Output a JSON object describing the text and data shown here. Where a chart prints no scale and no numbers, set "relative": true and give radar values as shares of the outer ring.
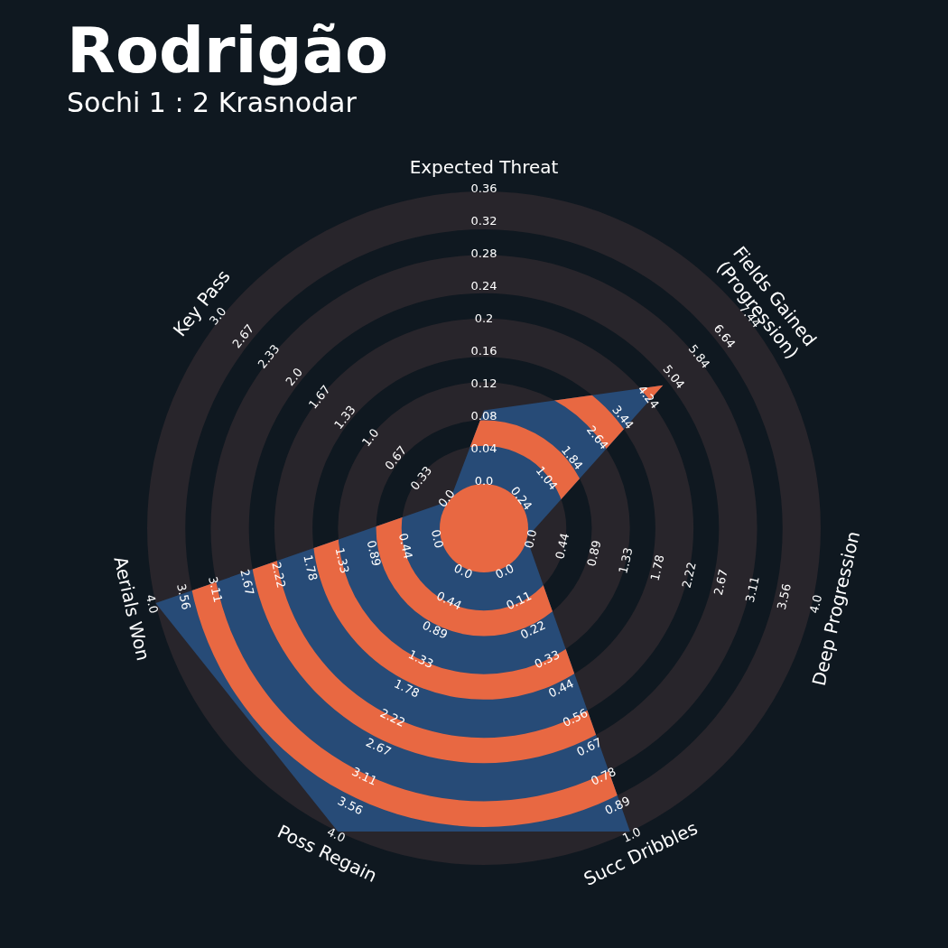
{
  "chart_data": {
    "type": "radar",
    "title": "Rodrigão",
    "subtitle": "Sochi 1 : 2 Krasnodar",
    "relative": true,
    "legend": false,
    "marker": "none",
    "categories": [
      "Expected Threat",
      "Fields Gained\n(Progression)",
      "Deep Progression",
      "Succ Dribbles",
      "Poss Regain",
      "Aerials Won",
      "Key Pass"
    ],
    "series": [
      {
        "color": "#274b77",
        "values": [
          0.35,
          0.68,
          0.13,
          1,
          1,
          1,
          0.13
        ]
      }
    ],
    "annotations": [
      "0.0",
      "0.04",
      "0.08",
      "0.12",
      "0.16",
      "0.2",
      "0.24",
      "0.28",
      "0.32",
      "0.36",
      "0.24",
      "1.04",
      "1.84",
      "2.64",
      "3.44",
      "4.24",
      "5.04",
      "5.84",
      "6.64",
      "7.44",
      "0.0",
      "0.44",
      "0.89",
      "1.33",
      "1.78",
      "2.22",
      "2.67",
      "3.11",
      "3.56",
      "4.0",
      "0.0",
      "0.11",
      "0.22",
      "0.33",
      "0.44",
      "0.56",
      "0.67",
      "0.78",
      "0.89",
      "1.0",
      "0.0",
      "0.44",
      "0.89",
      "1.33",
      "1.78",
      "2.22",
      "2.67",
      "3.11",
      "3.56",
      "4.0",
      "0.0",
      "0.44",
      "0.89",
      "1.33",
      "1.78",
      "2.22",
      "2.67",
      "3.11",
      "3.56",
      "4.0",
      "0.0",
      "0.33",
      "0.67",
      "1.0",
      "1.33",
      "1.67",
      "2.0",
      "2.33",
      "2.67",
      "3.0"
    ]
  }
}
